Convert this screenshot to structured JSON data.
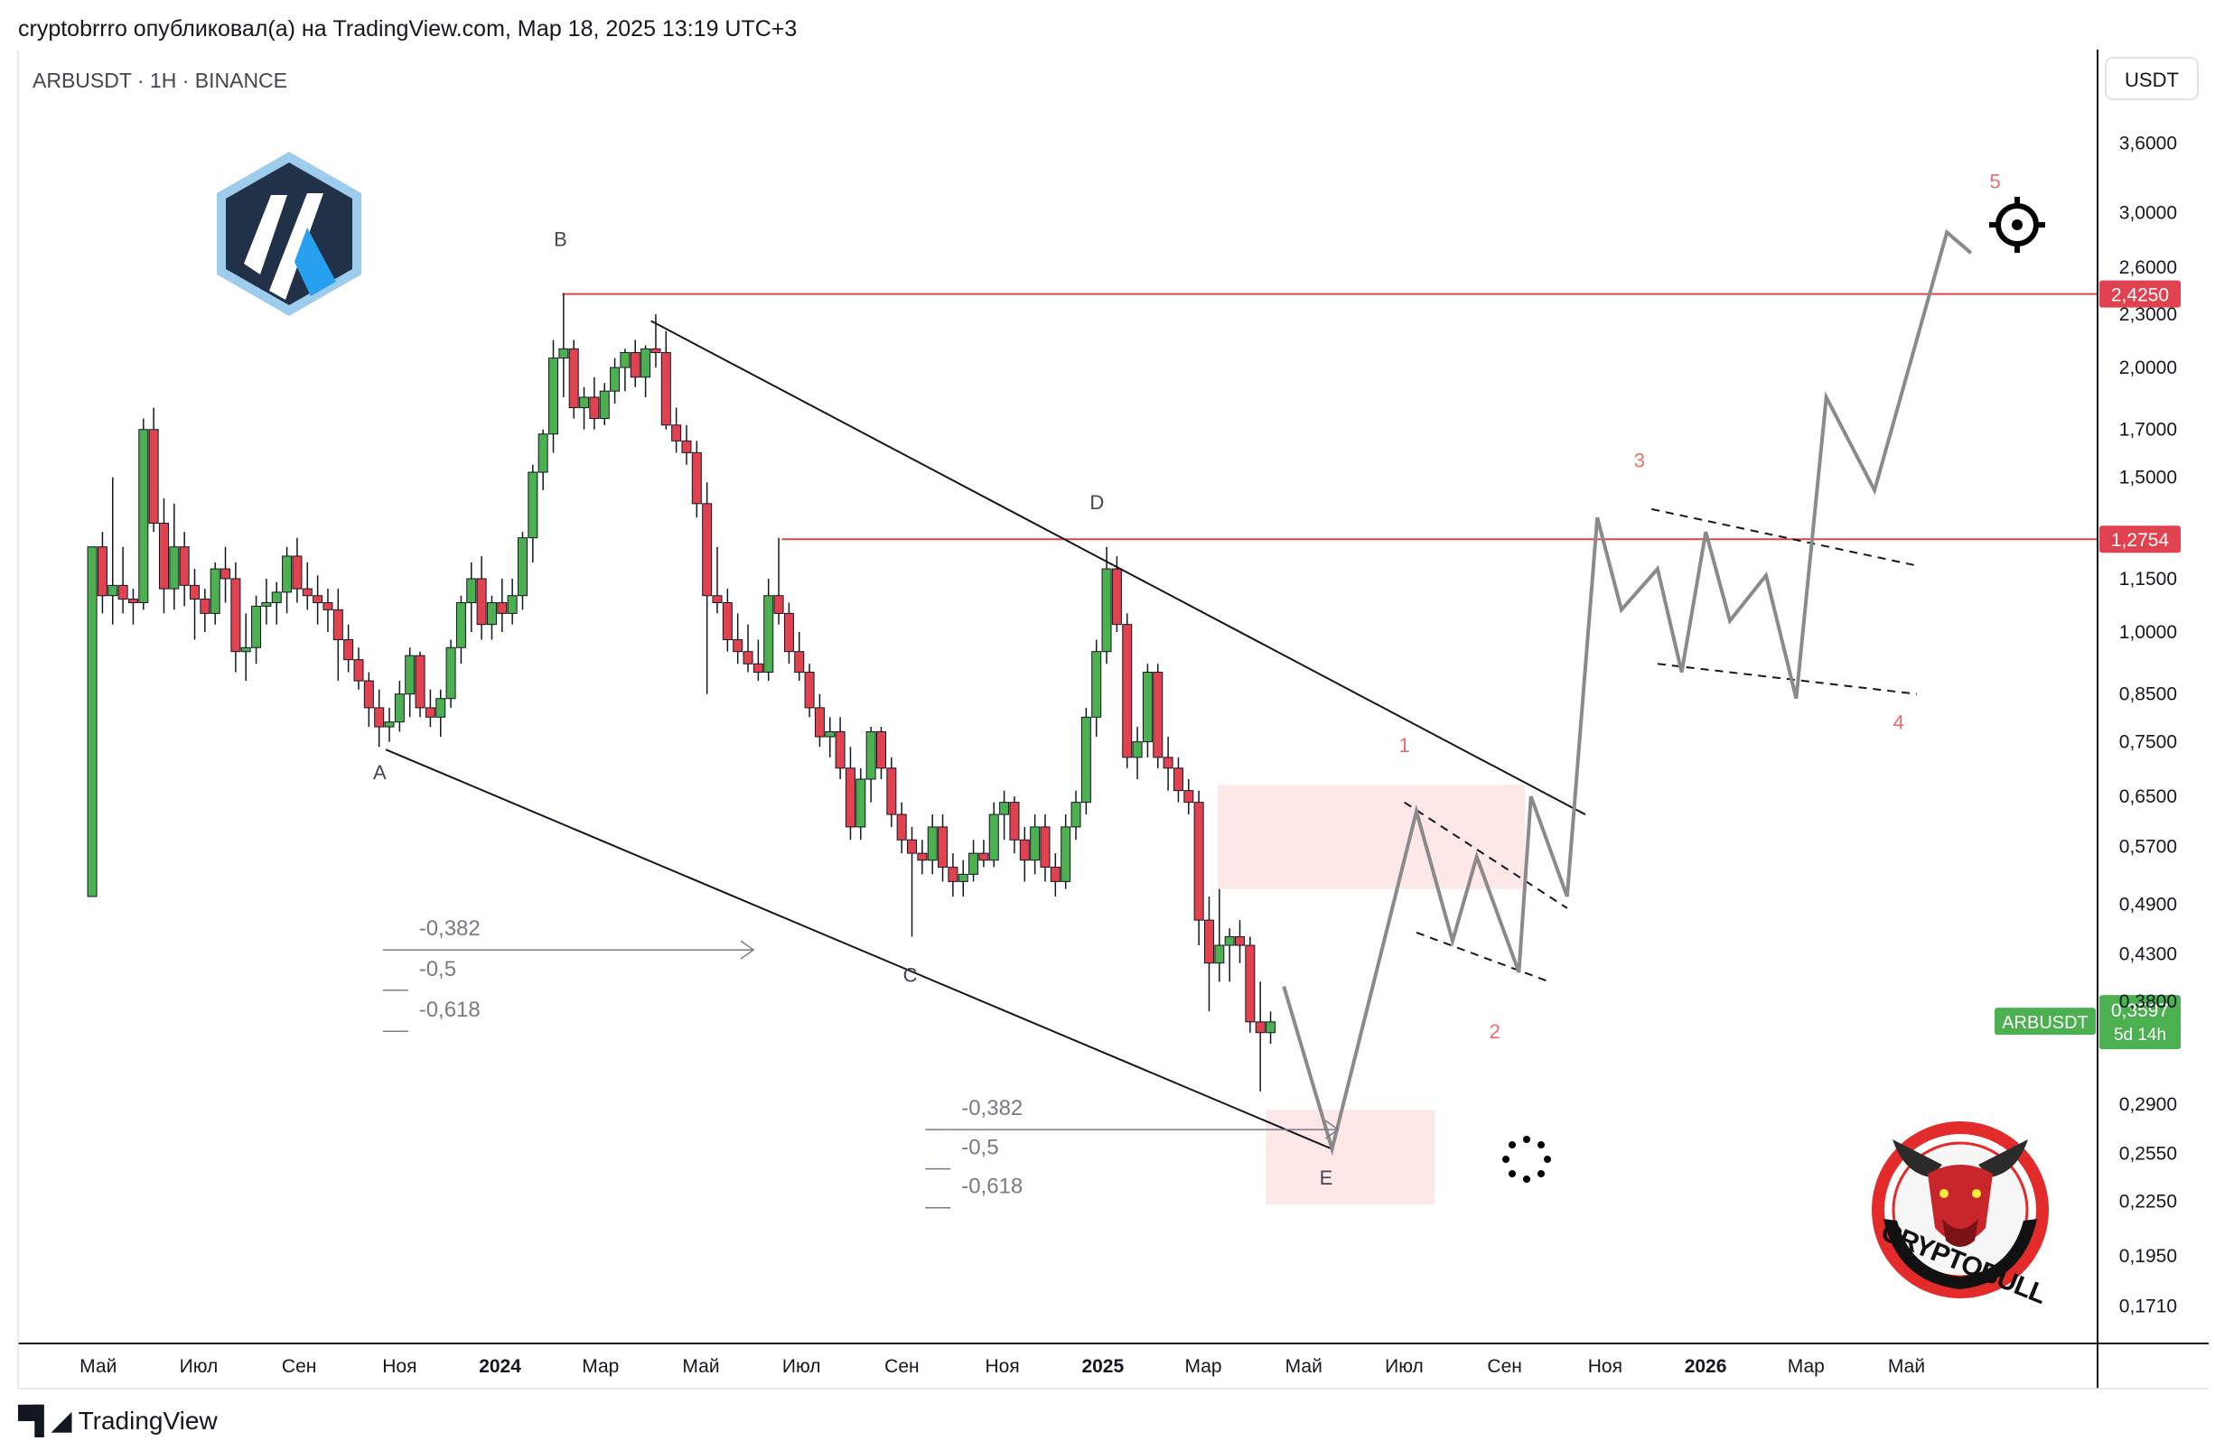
{
  "header": {
    "text": "cryptobrrro опубликовал(а) на TradingView.com, Мар 18, 2025 13:19 UTC+3"
  },
  "symbol_title": "ARBUSDT · 1H · BINANCE",
  "currency_button": "USDT",
  "footer": {
    "brand": "TradingView"
  },
  "colors": {
    "bull": "#4caf50",
    "bear": "#e0434f",
    "level": "#e0434f",
    "wave": "#8a8a8a",
    "zone": "#fde3e3",
    "label": "#ef6b6b"
  },
  "icons": [
    "arbitrum-logo",
    "crosshair-icon",
    "crypto-bull-logo",
    "loading-spinner-icon"
  ],
  "logo_text": "CRYPTOBULL",
  "chart_data": {
    "type": "candlestick",
    "symbol": "ARBUSDT",
    "timeframe": "1H",
    "exchange": "BINANCE",
    "y_scale": "log",
    "ylim": [
      0.155,
      4.6
    ],
    "xlim": [
      2023.2,
      2026.65
    ],
    "price_ticks": [
      "3,6000",
      "3,0000",
      "2,6000",
      "2,3000",
      "2,0000",
      "1,7000",
      "1,5000",
      "1,1500",
      "1,0000",
      "0,8500",
      "0,7500",
      "0,6500",
      "0,5700",
      "0,4900",
      "0,4300",
      "0,3800",
      "0,2900",
      "0,2550",
      "0,2250",
      "0,1950",
      "0,1710"
    ],
    "time_ticks": [
      "Май",
      "Июл",
      "Сен",
      "Ноя",
      "2024",
      "Мар",
      "Май",
      "Июл",
      "Сен",
      "Ноя",
      "2025",
      "Мар",
      "Май",
      "Июл",
      "Сен",
      "Ноя",
      "2026",
      "Мар",
      "Май"
    ],
    "price_levels": [
      {
        "label": "2,4250",
        "price": 2.425
      },
      {
        "label": "1,2754",
        "price": 1.2754
      }
    ],
    "current_price": {
      "symbol": "ARBUSDT",
      "price": "0,3597",
      "countdown": "5d 14h"
    },
    "candles": [
      [
        2023.323,
        0.5,
        1.25,
        0.5,
        1.25
      ],
      [
        2023.34,
        1.25,
        1.3,
        1.05,
        1.1
      ],
      [
        2023.357,
        1.1,
        1.5,
        1.02,
        1.13
      ],
      [
        2023.374,
        1.13,
        1.25,
        1.05,
        1.09
      ],
      [
        2023.391,
        1.09,
        1.12,
        1.02,
        1.08
      ],
      [
        2023.408,
        1.08,
        1.75,
        1.06,
        1.7
      ],
      [
        2023.425,
        1.7,
        1.8,
        1.3,
        1.33
      ],
      [
        2023.442,
        1.33,
        1.42,
        1.05,
        1.12
      ],
      [
        2023.459,
        1.12,
        1.4,
        1.06,
        1.25
      ],
      [
        2023.476,
        1.25,
        1.3,
        1.07,
        1.13
      ],
      [
        2023.493,
        1.13,
        1.18,
        0.98,
        1.09
      ],
      [
        2023.51,
        1.09,
        1.12,
        1.0,
        1.05
      ],
      [
        2023.527,
        1.05,
        1.2,
        1.02,
        1.18
      ],
      [
        2023.544,
        1.18,
        1.25,
        1.08,
        1.15
      ],
      [
        2023.561,
        1.15,
        1.2,
        0.9,
        0.95
      ],
      [
        2023.578,
        0.95,
        1.05,
        0.88,
        0.96
      ],
      [
        2023.595,
        0.96,
        1.1,
        0.92,
        1.07
      ],
      [
        2023.612,
        1.07,
        1.15,
        1.02,
        1.08
      ],
      [
        2023.629,
        1.08,
        1.14,
        1.02,
        1.11
      ],
      [
        2023.646,
        1.11,
        1.25,
        1.05,
        1.22
      ],
      [
        2023.663,
        1.22,
        1.28,
        1.08,
        1.12
      ],
      [
        2023.68,
        1.12,
        1.2,
        1.06,
        1.1
      ],
      [
        2023.697,
        1.1,
        1.16,
        1.02,
        1.08
      ],
      [
        2023.714,
        1.08,
        1.12,
        1.0,
        1.06
      ],
      [
        2023.731,
        1.06,
        1.12,
        0.88,
        0.98
      ],
      [
        2023.748,
        0.98,
        1.02,
        0.9,
        0.93
      ],
      [
        2023.765,
        0.93,
        0.96,
        0.86,
        0.88
      ],
      [
        2023.782,
        0.88,
        0.9,
        0.78,
        0.82
      ],
      [
        2023.799,
        0.82,
        0.86,
        0.74,
        0.78
      ],
      [
        2023.816,
        0.78,
        0.82,
        0.75,
        0.79
      ],
      [
        2023.833,
        0.79,
        0.88,
        0.77,
        0.85
      ],
      [
        2023.85,
        0.85,
        0.96,
        0.8,
        0.94
      ],
      [
        2023.867,
        0.94,
        0.95,
        0.8,
        0.82
      ],
      [
        2023.884,
        0.82,
        0.86,
        0.78,
        0.8
      ],
      [
        2023.901,
        0.8,
        0.86,
        0.76,
        0.84
      ],
      [
        2023.918,
        0.84,
        0.98,
        0.82,
        0.96
      ],
      [
        2023.935,
        0.96,
        1.1,
        0.92,
        1.08
      ],
      [
        2023.952,
        1.08,
        1.2,
        1.0,
        1.15
      ],
      [
        2023.969,
        1.15,
        1.22,
        0.98,
        1.02
      ],
      [
        2023.986,
        1.02,
        1.1,
        0.98,
        1.08
      ],
      [
        2024.003,
        1.08,
        1.15,
        1.0,
        1.05
      ],
      [
        2024.02,
        1.05,
        1.15,
        1.02,
        1.1
      ],
      [
        2024.037,
        1.1,
        1.3,
        1.06,
        1.28
      ],
      [
        2024.054,
        1.28,
        1.55,
        1.2,
        1.52
      ],
      [
        2024.071,
        1.52,
        1.7,
        1.45,
        1.68
      ],
      [
        2024.088,
        1.68,
        2.15,
        1.6,
        2.05
      ],
      [
        2024.105,
        2.05,
        2.43,
        1.85,
        2.1
      ],
      [
        2024.122,
        2.1,
        2.15,
        1.75,
        1.8
      ],
      [
        2024.139,
        1.8,
        1.9,
        1.7,
        1.85
      ],
      [
        2024.156,
        1.85,
        1.95,
        1.7,
        1.75
      ],
      [
        2024.173,
        1.75,
        1.92,
        1.72,
        1.88
      ],
      [
        2024.19,
        1.88,
        2.05,
        1.82,
        2.0
      ],
      [
        2024.207,
        2.0,
        2.1,
        1.88,
        2.08
      ],
      [
        2024.224,
        2.08,
        2.15,
        1.9,
        1.95
      ],
      [
        2024.241,
        1.95,
        2.12,
        1.85,
        2.1
      ],
      [
        2024.258,
        2.1,
        2.3,
        2.0,
        2.08
      ],
      [
        2024.275,
        2.08,
        2.2,
        1.7,
        1.72
      ],
      [
        2024.292,
        1.72,
        1.8,
        1.6,
        1.65
      ],
      [
        2024.309,
        1.65,
        1.72,
        1.55,
        1.6
      ],
      [
        2024.326,
        1.6,
        1.65,
        1.35,
        1.4
      ],
      [
        2024.343,
        1.4,
        1.48,
        0.85,
        1.1
      ],
      [
        2024.36,
        1.1,
        1.25,
        1.05,
        1.08
      ],
      [
        2024.377,
        1.08,
        1.12,
        0.95,
        0.98
      ],
      [
        2024.394,
        0.98,
        1.05,
        0.92,
        0.95
      ],
      [
        2024.411,
        0.95,
        1.02,
        0.9,
        0.92
      ],
      [
        2024.428,
        0.92,
        0.98,
        0.88,
        0.9
      ],
      [
        2024.445,
        0.9,
        1.15,
        0.88,
        1.1
      ],
      [
        2024.462,
        1.1,
        1.28,
        1.02,
        1.05
      ],
      [
        2024.479,
        1.05,
        1.08,
        0.92,
        0.95
      ],
      [
        2024.496,
        0.95,
        1.0,
        0.88,
        0.9
      ],
      [
        2024.513,
        0.9,
        0.92,
        0.8,
        0.82
      ],
      [
        2024.53,
        0.82,
        0.85,
        0.74,
        0.76
      ],
      [
        2024.547,
        0.76,
        0.8,
        0.72,
        0.77
      ],
      [
        2024.564,
        0.77,
        0.8,
        0.68,
        0.7
      ],
      [
        2024.581,
        0.7,
        0.74,
        0.58,
        0.6
      ],
      [
        2024.598,
        0.6,
        0.7,
        0.58,
        0.68
      ],
      [
        2024.615,
        0.68,
        0.78,
        0.64,
        0.77
      ],
      [
        2024.632,
        0.77,
        0.78,
        0.68,
        0.7
      ],
      [
        2024.649,
        0.7,
        0.72,
        0.6,
        0.62
      ],
      [
        2024.666,
        0.62,
        0.64,
        0.56,
        0.58
      ],
      [
        2024.683,
        0.58,
        0.6,
        0.45,
        0.56
      ],
      [
        2024.7,
        0.56,
        0.58,
        0.53,
        0.55
      ],
      [
        2024.717,
        0.55,
        0.62,
        0.53,
        0.6
      ],
      [
        2024.734,
        0.6,
        0.62,
        0.52,
        0.54
      ],
      [
        2024.751,
        0.54,
        0.56,
        0.5,
        0.52
      ],
      [
        2024.768,
        0.52,
        0.55,
        0.5,
        0.53
      ],
      [
        2024.785,
        0.53,
        0.58,
        0.52,
        0.56
      ],
      [
        2024.802,
        0.56,
        0.58,
        0.54,
        0.55
      ],
      [
        2024.819,
        0.55,
        0.64,
        0.54,
        0.62
      ],
      [
        2024.836,
        0.62,
        0.66,
        0.58,
        0.64
      ],
      [
        2024.853,
        0.64,
        0.65,
        0.56,
        0.58
      ],
      [
        2024.87,
        0.58,
        0.6,
        0.52,
        0.55
      ],
      [
        2024.887,
        0.55,
        0.62,
        0.53,
        0.6
      ],
      [
        2024.904,
        0.6,
        0.62,
        0.52,
        0.54
      ],
      [
        2024.921,
        0.54,
        0.56,
        0.5,
        0.52
      ],
      [
        2024.938,
        0.52,
        0.62,
        0.51,
        0.6
      ],
      [
        2024.955,
        0.6,
        0.66,
        0.58,
        0.64
      ],
      [
        2024.972,
        0.64,
        0.82,
        0.62,
        0.8
      ],
      [
        2024.989,
        0.8,
        0.98,
        0.76,
        0.95
      ],
      [
        2025.006,
        0.95,
        1.25,
        0.92,
        1.18
      ],
      [
        2025.023,
        1.18,
        1.22,
        1.0,
        1.02
      ],
      [
        2025.04,
        1.02,
        1.05,
        0.7,
        0.72
      ],
      [
        2025.057,
        0.72,
        0.78,
        0.68,
        0.75
      ],
      [
        2025.074,
        0.75,
        0.92,
        0.72,
        0.9
      ],
      [
        2025.091,
        0.9,
        0.92,
        0.7,
        0.72
      ],
      [
        2025.108,
        0.72,
        0.76,
        0.66,
        0.7
      ],
      [
        2025.125,
        0.7,
        0.72,
        0.64,
        0.66
      ],
      [
        2025.142,
        0.66,
        0.68,
        0.62,
        0.64
      ],
      [
        2025.159,
        0.64,
        0.66,
        0.44,
        0.47
      ],
      [
        2025.176,
        0.47,
        0.5,
        0.37,
        0.42
      ],
      [
        2025.193,
        0.42,
        0.51,
        0.4,
        0.44
      ],
      [
        2025.21,
        0.44,
        0.46,
        0.4,
        0.45
      ],
      [
        2025.227,
        0.45,
        0.47,
        0.42,
        0.44
      ],
      [
        2025.244,
        0.44,
        0.45,
        0.35,
        0.36
      ],
      [
        2025.261,
        0.36,
        0.4,
        0.3,
        0.35
      ],
      [
        2025.278,
        0.35,
        0.37,
        0.34,
        0.36
      ]
    ],
    "trendlines": [
      {
        "from": [
          2023.81,
          0.735
        ],
        "to": [
          2025.38,
          0.258
        ]
      },
      {
        "from": [
          2024.25,
          2.26
        ],
        "to": [
          2025.8,
          0.62
        ]
      }
    ],
    "pattern_points": [
      {
        "label": "A",
        "t": 2023.8,
        "p": 0.68
      },
      {
        "label": "B",
        "t": 2024.1,
        "p": 2.75
      },
      {
        "label": "C",
        "t": 2024.68,
        "p": 0.4
      },
      {
        "label": "D",
        "t": 2024.99,
        "p": 1.38
      },
      {
        "label": "E",
        "t": 2025.37,
        "p": 0.235
      }
    ],
    "wave_labels": [
      {
        "label": "1",
        "t": 2025.5,
        "p": 0.73
      },
      {
        "label": "2",
        "t": 2025.65,
        "p": 0.345
      },
      {
        "label": "3",
        "t": 2025.89,
        "p": 1.54
      },
      {
        "label": "4",
        "t": 2026.32,
        "p": 0.775
      },
      {
        "label": "5",
        "t": 2026.48,
        "p": 3.2
      }
    ],
    "projection_path": [
      [
        2025.3,
        0.395
      ],
      [
        2025.38,
        0.258
      ],
      [
        2025.52,
        0.625
      ],
      [
        2025.58,
        0.445
      ],
      [
        2025.62,
        0.555
      ],
      [
        2025.69,
        0.41
      ],
      [
        2025.71,
        0.65
      ],
      [
        2025.77,
        0.5
      ],
      [
        2025.82,
        1.35
      ],
      [
        2025.86,
        1.06
      ],
      [
        2025.92,
        1.18
      ],
      [
        2025.96,
        0.9
      ],
      [
        2026.0,
        1.3
      ],
      [
        2026.04,
        1.03
      ],
      [
        2026.1,
        1.16
      ],
      [
        2026.15,
        0.84
      ],
      [
        2026.2,
        1.85
      ],
      [
        2026.28,
        1.45
      ],
      [
        2026.4,
        2.85
      ],
      [
        2026.44,
        2.7
      ]
    ],
    "channels": [
      {
        "from": [
          2025.5,
          0.64
        ],
        "to": [
          2025.77,
          0.485
        ]
      },
      {
        "from": [
          2025.52,
          0.455
        ],
        "to": [
          2025.74,
          0.4
        ]
      },
      {
        "from": [
          2025.91,
          1.38
        ],
        "to": [
          2026.35,
          1.19
        ]
      },
      {
        "from": [
          2025.92,
          0.92
        ],
        "to": [
          2026.35,
          0.85
        ]
      }
    ],
    "zones": [
      {
        "t1": 2025.19,
        "t2": 2025.7,
        "p_low": 0.51,
        "p_high": 0.67
      },
      {
        "t1": 2025.27,
        "t2": 2025.55,
        "p_low": 0.223,
        "p_high": 0.286
      }
    ],
    "fib_sets": [
      {
        "levels": [
          "-0,382",
          "-0,5",
          "-0,618"
        ],
        "t": 2023.85,
        "arrow_to": 2024.42,
        "p": [
          0.458,
          0.412,
          0.37
        ]
      },
      {
        "levels": [
          "-0,382",
          "-0,5",
          "-0,618"
        ],
        "t": 2024.75,
        "arrow_to": 2025.39,
        "p": [
          0.286,
          0.258,
          0.233
        ]
      }
    ]
  }
}
